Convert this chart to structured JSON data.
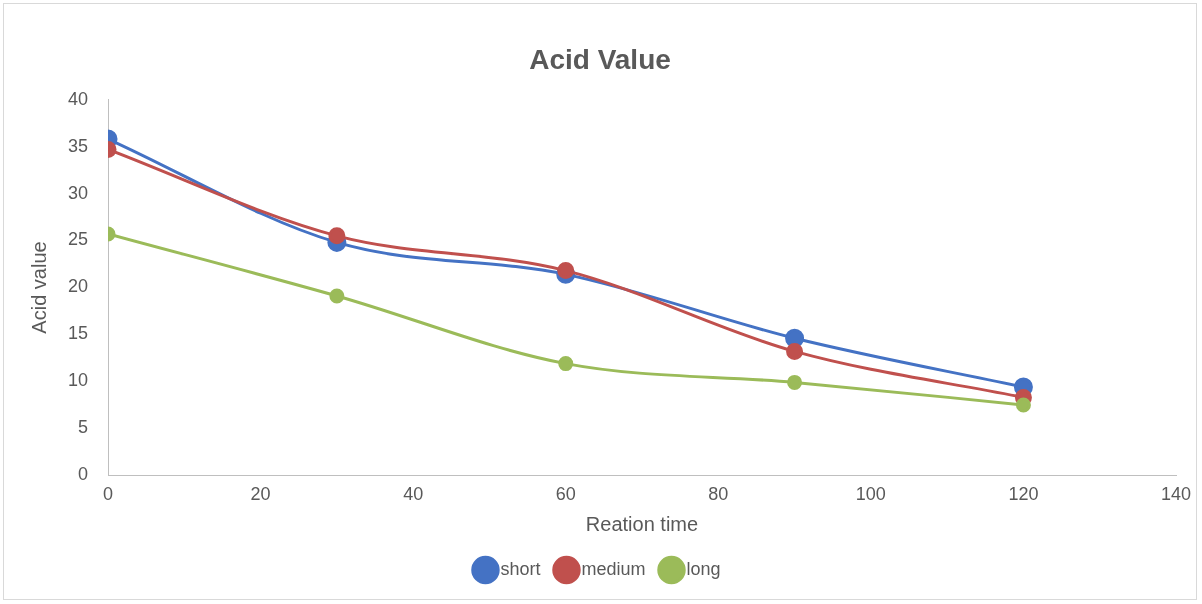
{
  "chart_data": {
    "type": "line",
    "title": "Acid Value",
    "xlabel": "Reation time",
    "ylabel": "Acid value",
    "x": [
      0,
      30,
      60,
      90,
      120
    ],
    "series": [
      {
        "name": "short",
        "color": "#4472c4",
        "values": [
          35.8,
          24.8,
          21.4,
          14.6,
          9.4
        ]
      },
      {
        "name": "medium",
        "color": "#c0504d",
        "values": [
          34.7,
          25.5,
          21.8,
          13.2,
          8.3
        ]
      },
      {
        "name": "long",
        "color": "#9bbb59",
        "values": [
          25.7,
          19.1,
          11.9,
          9.9,
          7.5
        ]
      }
    ],
    "xlim": [
      0,
      140
    ],
    "xticks": [
      0,
      20,
      40,
      60,
      80,
      100,
      120,
      140
    ],
    "ylim": [
      0,
      40
    ],
    "yticks": [
      0,
      5,
      10,
      15,
      20,
      25,
      30,
      35,
      40
    ],
    "grid": false,
    "legend": "bottom",
    "marker": "circle",
    "line_style": "solid"
  }
}
